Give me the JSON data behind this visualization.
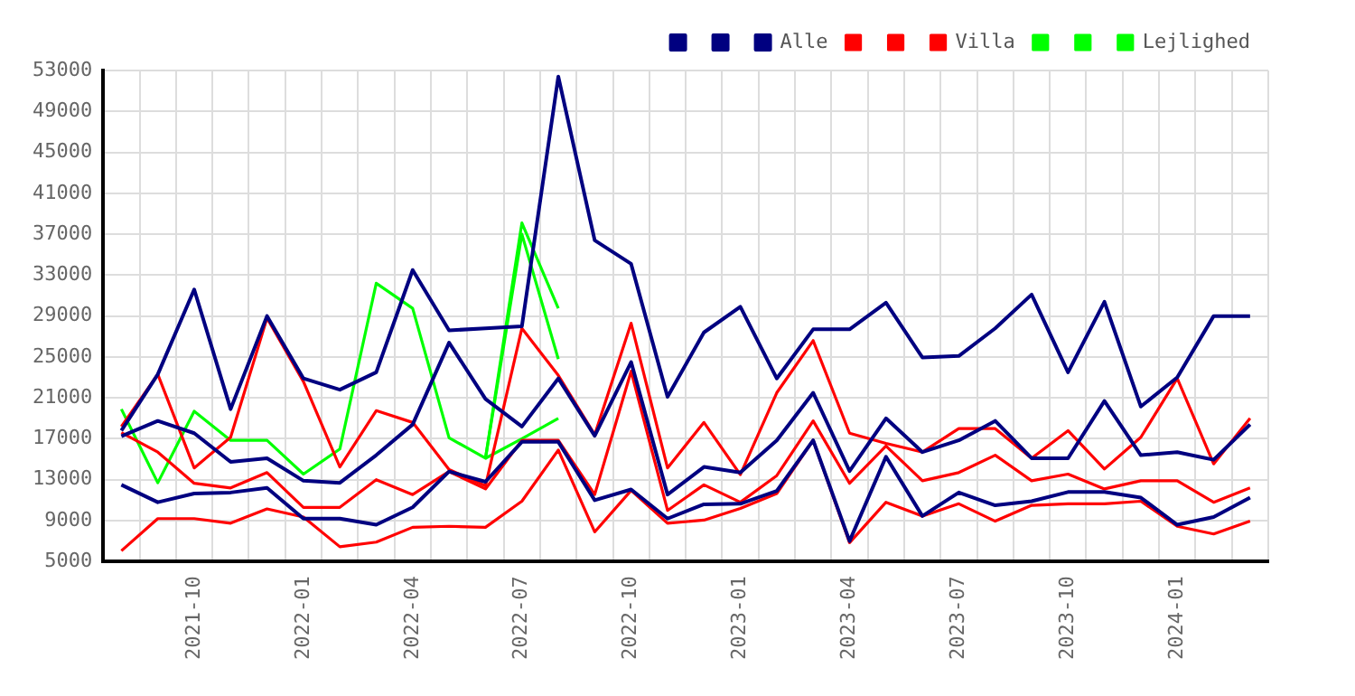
{
  "chart_data": {
    "type": "line",
    "categories": [
      null,
      null,
      "2021-10",
      null,
      null,
      "2022-01",
      null,
      null,
      "2022-04",
      null,
      null,
      "2022-07",
      null,
      null,
      "2022-10",
      null,
      null,
      "2023-01",
      null,
      null,
      "2023-04",
      null,
      null,
      "2023-07",
      null,
      null,
      "2023-10",
      null,
      null,
      "2024-01",
      null,
      null
    ],
    "series": [
      {
        "color": "#000080",
        "values": [
          17800,
          23300,
          31600,
          19900,
          29000,
          22900,
          21800,
          23500,
          33500,
          27600,
          27800,
          28000,
          52400,
          36400,
          34100,
          21100,
          27400,
          29900,
          22900,
          27700,
          27700,
          30300,
          24950,
          25100,
          27800,
          31100,
          23500,
          30400,
          20150,
          23000,
          29000,
          29000
        ]
      },
      {
        "color": "#000080",
        "values": [
          17250,
          18750,
          17550,
          14750,
          15100,
          12900,
          12700,
          15400,
          18400,
          26400,
          20900,
          18200,
          22900,
          17300,
          24500,
          11550,
          14250,
          13700,
          16850,
          21500,
          13850,
          19000,
          15700,
          16850,
          18750,
          15100,
          15100,
          20700,
          15400,
          15700,
          14950,
          18400
        ]
      },
      {
        "name": "Alle",
        "color": "#000080",
        "values": [
          12500,
          10800,
          11650,
          11750,
          12200,
          9200,
          9200,
          8600,
          10300,
          13800,
          12800,
          16700,
          16700,
          11000,
          12050,
          9200,
          10600,
          10650,
          11900,
          16850,
          7000,
          15250,
          9450,
          11750,
          10500,
          10900,
          11800,
          11800,
          11250,
          8600,
          9350,
          11250
        ]
      },
      {
        "color": "#ff0000",
        "values": [
          18200,
          23300,
          14150,
          17150,
          28800,
          22600,
          14250,
          19750,
          18600,
          14000,
          12400,
          27800,
          23200,
          17400,
          28300,
          14150,
          18600,
          13500,
          21500,
          26600,
          17550,
          16550,
          15700,
          18000,
          18000,
          15100,
          17800,
          14050,
          17150,
          22900,
          14550,
          19000
        ]
      },
      {
        "color": "#ff0000",
        "values": [
          17600,
          15700,
          12650,
          12200,
          13700,
          10300,
          10300,
          13000,
          11550,
          13800,
          12100,
          16850,
          16850,
          11550,
          23600,
          10000,
          12500,
          10800,
          13400,
          18750,
          12650,
          16300,
          12900,
          13700,
          15400,
          12900,
          13550,
          12100,
          12900,
          12900,
          10800,
          12200
        ]
      },
      {
        "name": "Villa",
        "color": "#ff0000",
        "values": [
          6050,
          9200,
          9200,
          8750,
          10150,
          9350,
          6450,
          6900,
          8350,
          8450,
          8350,
          10900,
          15900,
          7900,
          11950,
          8750,
          9050,
          10200,
          11650,
          16850,
          6850,
          10800,
          9450,
          10650,
          8950,
          10500,
          10650,
          10650,
          10900,
          8450,
          7700,
          8950
        ]
      },
      {
        "color": "#00ff00",
        "values": [
          19900,
          12700,
          19700,
          16850,
          16850,
          13550,
          16000,
          32200,
          29750,
          17100,
          15100,
          38100,
          29750,
          null,
          null,
          null,
          null,
          null,
          null,
          null,
          null,
          null,
          null,
          null,
          null,
          null,
          null,
          null,
          null,
          null,
          null,
          null
        ]
      },
      {
        "color": "#00ff00",
        "values": [
          null,
          null,
          null,
          null,
          null,
          null,
          null,
          null,
          null,
          null,
          15100,
          37000,
          24800,
          null,
          null,
          null,
          null,
          null,
          null,
          null,
          null,
          null,
          null,
          null,
          null,
          null,
          null,
          null,
          null,
          null,
          null,
          null
        ]
      },
      {
        "name": "Lejlighed",
        "color": "#00ff00",
        "values": [
          null,
          null,
          null,
          null,
          null,
          null,
          null,
          null,
          null,
          null,
          15100,
          17000,
          19000,
          null,
          null,
          null,
          null,
          null,
          null,
          null,
          null,
          null,
          null,
          null,
          null,
          null,
          null,
          null,
          null,
          null,
          null,
          null
        ]
      }
    ],
    "ylim": [
      5000,
      53000
    ],
    "yticks": [
      5000,
      9000,
      13000,
      17000,
      21000,
      25000,
      29000,
      33000,
      37000,
      41000,
      45000,
      49000,
      53000
    ],
    "grid": true,
    "legend": "top right"
  }
}
